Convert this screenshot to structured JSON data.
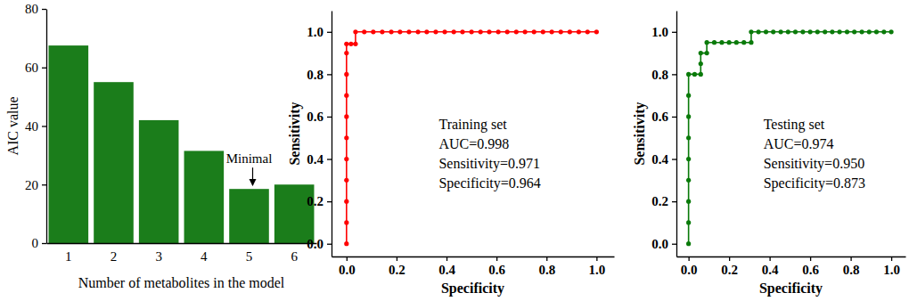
{
  "chart_data": [
    {
      "type": "bar",
      "categories": [
        "1",
        "2",
        "3",
        "4",
        "5",
        "6"
      ],
      "values": [
        67.5,
        55,
        42,
        31.5,
        18.5,
        20
      ],
      "color": "#1b7d1b",
      "xlabel": "Number of metabolites in the model",
      "ylabel": "AIC value",
      "ylim": [
        0,
        80
      ],
      "yticks": [
        0,
        20,
        40,
        60,
        80
      ],
      "grid": false,
      "annotations": [
        {
          "text": "Minimal",
          "x": "5"
        }
      ]
    },
    {
      "type": "line",
      "marker": "circle",
      "color": "#ff0000",
      "x": [
        0,
        0,
        0,
        0,
        0,
        0,
        0,
        0,
        0,
        0,
        0,
        0.018,
        0.036,
        0.036,
        0.071,
        0.107,
        0.143,
        0.179,
        0.214,
        0.25,
        0.286,
        0.321,
        0.357,
        0.393,
        0.429,
        0.464,
        0.5,
        0.536,
        0.571,
        0.607,
        0.643,
        0.679,
        0.714,
        0.75,
        0.786,
        0.821,
        0.857,
        0.893,
        0.929,
        0.964,
        1
      ],
      "values": [
        0,
        0.1,
        0.2,
        0.3,
        0.4,
        0.5,
        0.6,
        0.7,
        0.8,
        0.9,
        0.943,
        0.943,
        0.943,
        1,
        1,
        1,
        1,
        1,
        1,
        1,
        1,
        1,
        1,
        1,
        1,
        1,
        1,
        1,
        1,
        1,
        1,
        1,
        1,
        1,
        1,
        1,
        1,
        1,
        1,
        1,
        1
      ],
      "xlabel": "Specificity",
      "ylabel": "Sensitivity",
      "xlim": [
        -0.06,
        1.07
      ],
      "ylim": [
        -0.06,
        1.1
      ],
      "xticks": [
        {
          "value": 0,
          "label": "0.0"
        },
        0.2,
        0.4,
        0.6,
        0.8,
        {
          "value": 1,
          "label": "1.0"
        }
      ],
      "yticks": [
        {
          "value": 0,
          "label": "0.0"
        },
        0.2,
        0.4,
        0.6,
        0.8,
        {
          "value": 1,
          "label": "1.0"
        }
      ],
      "grid": false,
      "annotations": [
        "Training set",
        "AUC=0.998",
        "Sensitivity=0.971",
        "Specificity=0.964"
      ]
    },
    {
      "type": "line",
      "marker": "circle",
      "color": "#0a7a0a",
      "x": [
        0,
        0,
        0,
        0,
        0,
        0,
        0,
        0,
        0,
        0.03,
        0.06,
        0.06,
        0.06,
        0.09,
        0.09,
        0.127,
        0.164,
        0.2,
        0.236,
        0.273,
        0.309,
        0.309,
        0.345,
        0.382,
        0.418,
        0.455,
        0.491,
        0.527,
        0.564,
        0.6,
        0.636,
        0.673,
        0.709,
        0.745,
        0.782,
        0.818,
        0.855,
        0.891,
        0.927,
        0.964,
        1
      ],
      "values": [
        0,
        0.1,
        0.2,
        0.3,
        0.4,
        0.5,
        0.6,
        0.7,
        0.8,
        0.8,
        0.8,
        0.85,
        0.9,
        0.9,
        0.95,
        0.95,
        0.95,
        0.95,
        0.95,
        0.95,
        0.95,
        1,
        1,
        1,
        1,
        1,
        1,
        1,
        1,
        1,
        1,
        1,
        1,
        1,
        1,
        1,
        1,
        1,
        1,
        1,
        1
      ],
      "xlabel": "Specificity",
      "ylabel": "Sensitivity",
      "xlim": [
        -0.06,
        1.07
      ],
      "ylim": [
        -0.06,
        1.1
      ],
      "xticks": [
        {
          "value": 0,
          "label": "0.0"
        },
        0.2,
        0.4,
        0.6,
        0.8,
        {
          "value": 1,
          "label": "1.0"
        }
      ],
      "yticks": [
        {
          "value": 0,
          "label": "0.0"
        },
        0.2,
        0.4,
        0.6,
        0.8,
        {
          "value": 1,
          "label": "1.0"
        }
      ],
      "grid": false,
      "annotations": [
        "Testing set",
        "AUC=0.974",
        "Sensitivity=0.950",
        "Specificity=0.873"
      ]
    }
  ]
}
